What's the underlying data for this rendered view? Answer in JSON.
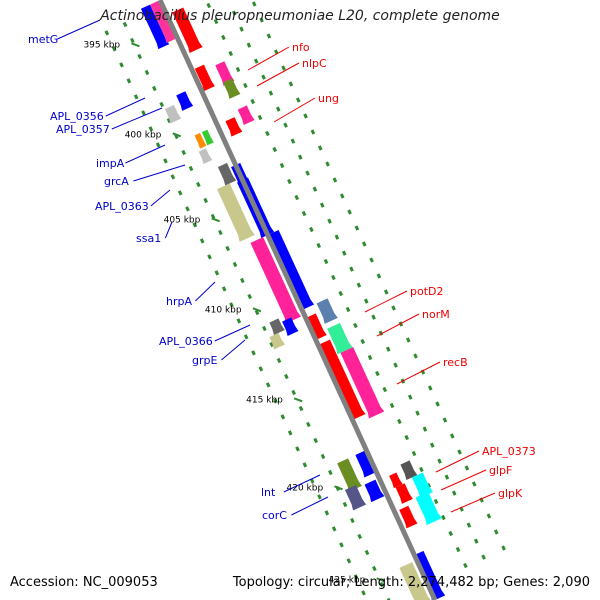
{
  "title": "Actinobacillus pleuropneumoniae L20, complete genome",
  "footer": {
    "accession": "Accession: NC_009053",
    "summary": "Topology: circular; Length: 2,274,482 bp; Genes: 2,090"
  },
  "colors": {
    "backbone": "#808080",
    "forward_label": "#ee0000",
    "reverse_label": "#0000cc",
    "tick": "#2e8b2e",
    "leader_forward": "#ee0000",
    "leader_reverse": "#0000cc"
  },
  "ticks": [
    {
      "label": "395 kbp",
      "kbp": 395
    },
    {
      "label": "400 kbp",
      "kbp": 400
    },
    {
      "label": "405 kbp",
      "kbp": 405
    },
    {
      "label": "410 kbp",
      "kbp": 410
    },
    {
      "label": "415 kbp",
      "kbp": 415
    },
    {
      "label": "420 kbp",
      "kbp": 420
    },
    {
      "label": "425 kbp",
      "kbp": 425
    }
  ],
  "labels_reverse": [
    "metG",
    "APL_0356",
    "APL_0357",
    "impA",
    "grcA",
    "APL_0363",
    "ssa1",
    "hrpA",
    "APL_0366",
    "grpE",
    "lnt",
    "corC"
  ],
  "labels_forward": [
    "nfo",
    "nlpC",
    "ung",
    "potD2",
    "norM",
    "recB",
    "APL_0373",
    "glpF",
    "glpK"
  ]
}
